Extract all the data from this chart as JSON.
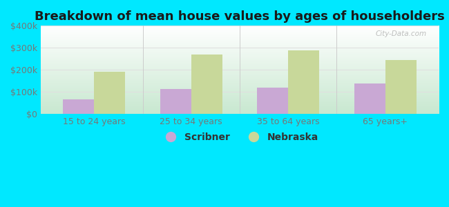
{
  "title": "Breakdown of mean house values by ages of householders",
  "categories": [
    "15 to 24 years",
    "25 to 34 years",
    "35 to 64 years",
    "65 years+"
  ],
  "scribner_values": [
    67000,
    113000,
    118000,
    138000
  ],
  "nebraska_values": [
    192000,
    270000,
    287000,
    245000
  ],
  "scribner_color": "#c9a8d4",
  "nebraska_color": "#c8d89a",
  "background_color": "#00e8ff",
  "plot_bg_top": "#c8e8d0",
  "plot_bg_bottom": "#eaf5ea",
  "ylim": [
    0,
    400000
  ],
  "yticks": [
    0,
    100000,
    200000,
    300000,
    400000
  ],
  "ytick_labels": [
    "$0",
    "$100k",
    "$200k",
    "$300k",
    "$400k"
  ],
  "bar_width": 0.32,
  "legend_labels": [
    "Scribner",
    "Nebraska"
  ],
  "watermark": "City-Data.com",
  "title_fontsize": 13,
  "tick_fontsize": 9,
  "legend_fontsize": 10,
  "tick_color": "#777777",
  "grid_color": "#e0e0e0",
  "separator_color": "#cccccc"
}
